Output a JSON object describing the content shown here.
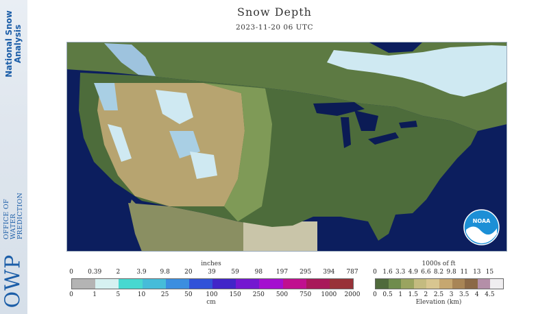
{
  "branding": {
    "strip_title_line1": "National Snow",
    "strip_title_line2": "Analysis",
    "org_line1": "OFFICE OF",
    "org_line2": "WATER",
    "org_line3": "PREDICTION",
    "logo_text": "OWP",
    "noaa_text": "NOAA"
  },
  "header": {
    "title": "Snow Depth",
    "timestamp": "2023-11-20 06 UTC"
  },
  "snow_legend": {
    "unit_top": "inches",
    "unit_bottom": "cm",
    "top_ticks": [
      "0",
      "0.39",
      "2",
      "3.9",
      "9.8",
      "20",
      "39",
      "59",
      "98",
      "197",
      "295",
      "394",
      "787"
    ],
    "bottom_ticks": [
      "0",
      "1",
      "5",
      "10",
      "25",
      "50",
      "100",
      "150",
      "250",
      "500",
      "750",
      "1000",
      "2000"
    ],
    "colors": [
      "#b4b4b4",
      "#d6f1f1",
      "#48d8d0",
      "#46bcd9",
      "#3b8ee0",
      "#3152d8",
      "#4125c8",
      "#7418d0",
      "#a40fcf",
      "#c0108f",
      "#a8195a",
      "#983238"
    ]
  },
  "elevation_legend": {
    "unit_top": "1000s of ft",
    "unit_bottom": "Elevation (km)",
    "top_ticks": [
      "0",
      "1.6",
      "3.3",
      "4.9",
      "6.6",
      "8.2",
      "9.8",
      "11",
      "13",
      "15"
    ],
    "bottom_ticks": [
      "0",
      "0.5",
      "1",
      "1.5",
      "2",
      "2.5",
      "3",
      "3.5",
      "4",
      "4.5"
    ],
    "colors": [
      "#4f6a3b",
      "#6f8c4d",
      "#9aa460",
      "#c4bb80",
      "#d8c690",
      "#c6a770",
      "#a88556",
      "#8b6947",
      "#b48fa8",
      "#f0eef0"
    ]
  },
  "map_colors": {
    "ocean": "#0c1e5e",
    "lowland": "#4d6c3b",
    "plains": "#7f9a57",
    "highland": "#b7a470",
    "canada": "#5d7a43",
    "snow": "#cfe9f2",
    "lake": "#0b1b55",
    "mexico_gray": "#c9c5a9"
  }
}
